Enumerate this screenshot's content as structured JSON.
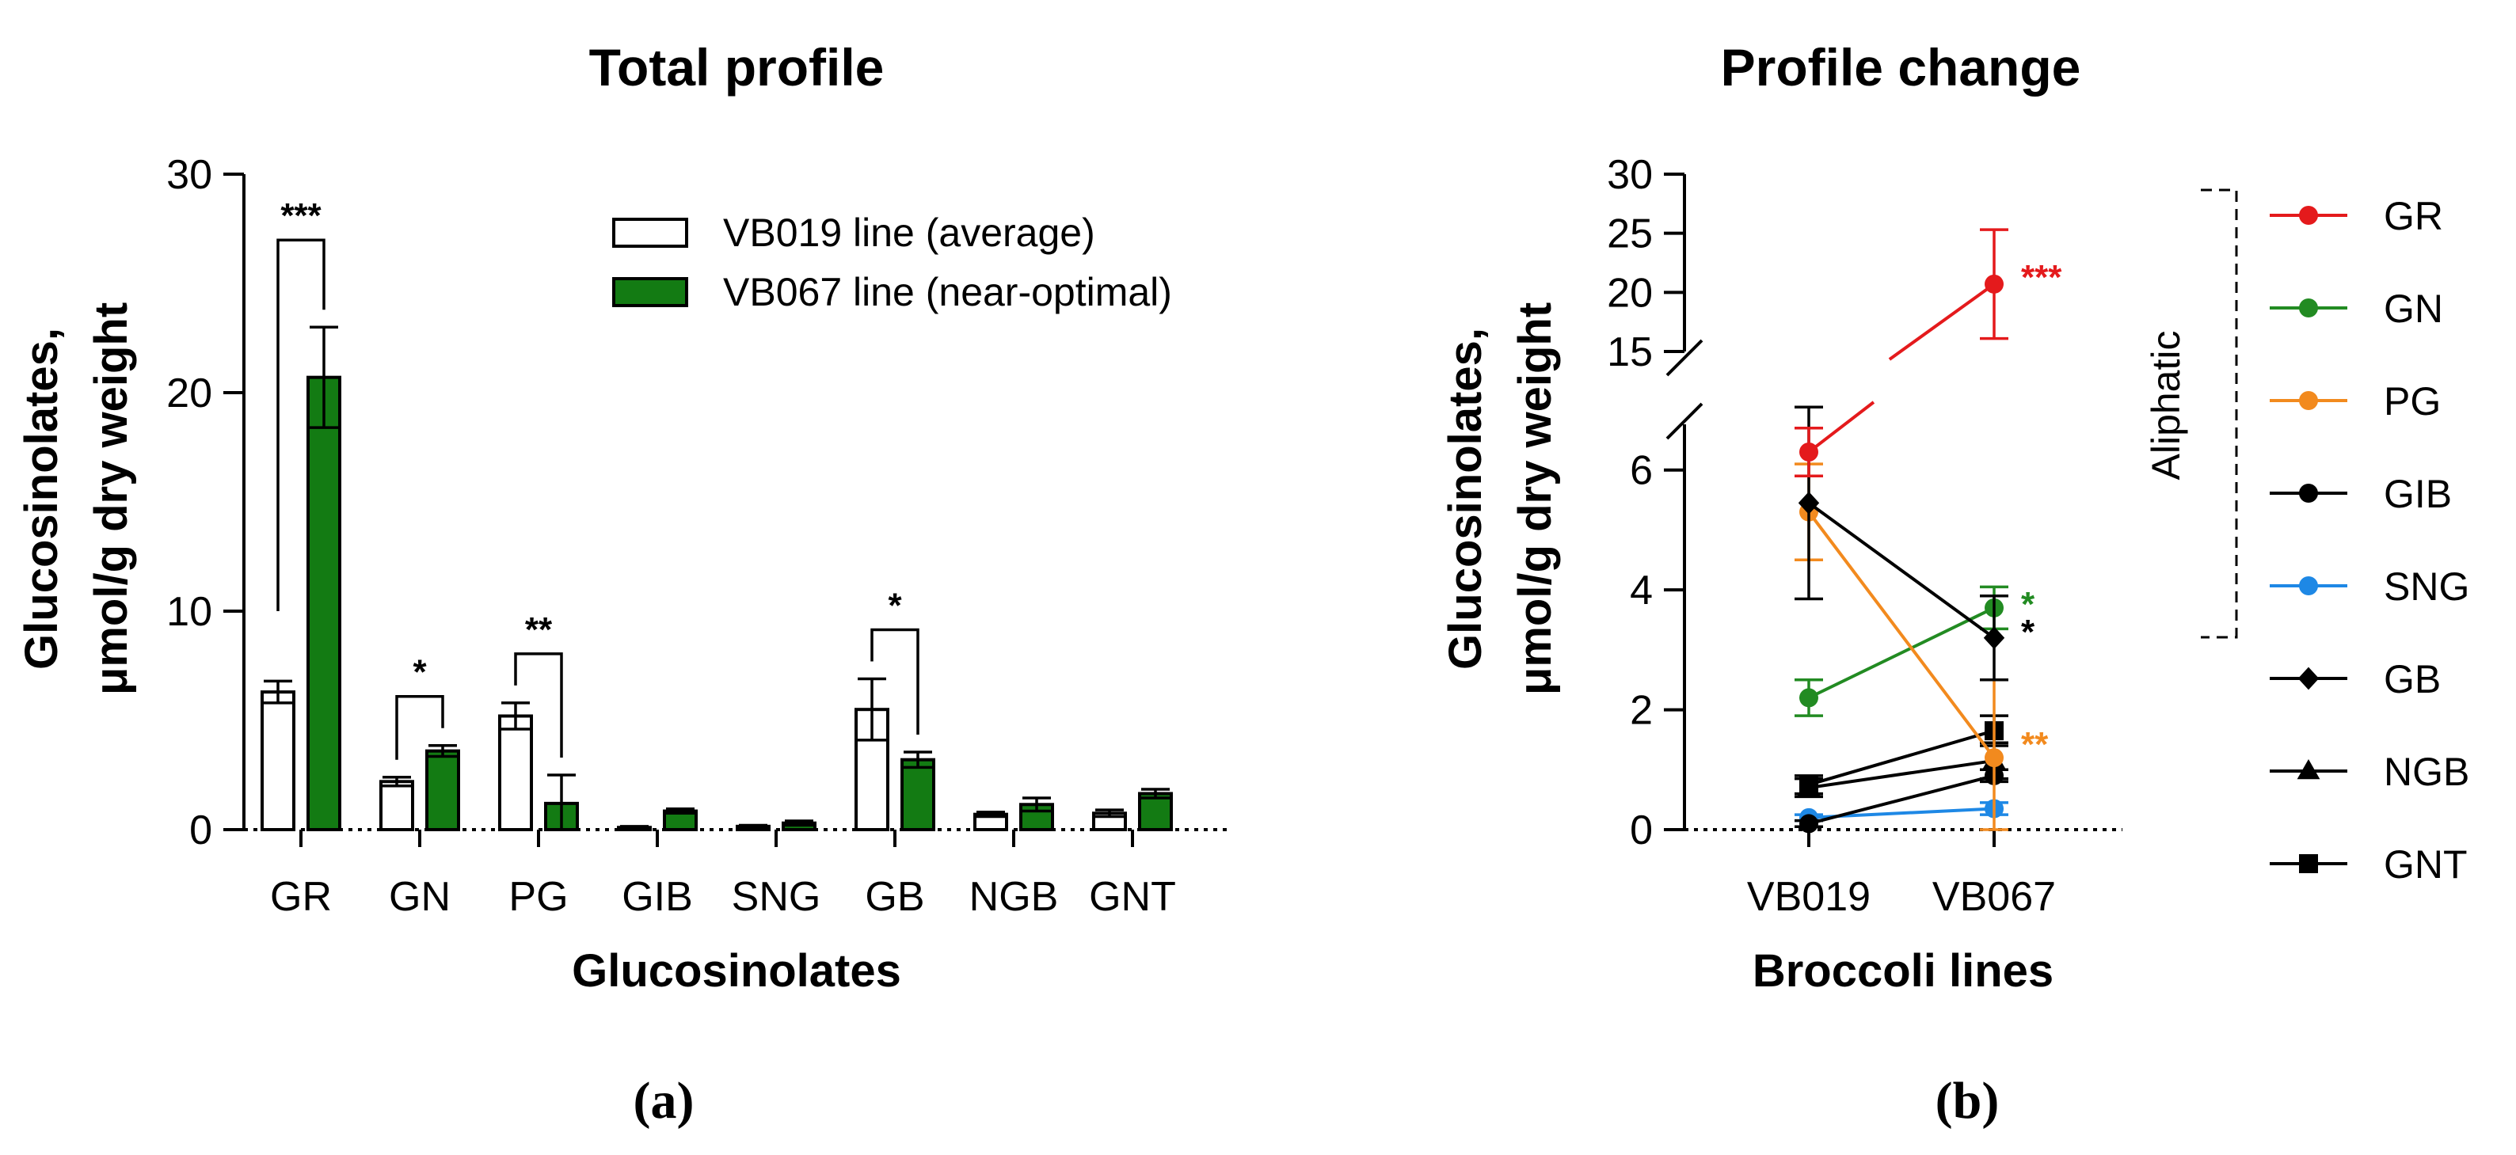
{
  "chart_data": [
    {
      "type": "bar",
      "panel_label": "(a)",
      "title": "Total profile",
      "xlabel": "Glucosinolates",
      "ylabel_line1": "Glucosinolates,",
      "ylabel_line2": "μmol/g dry weight",
      "ylim": [
        0,
        30
      ],
      "yticks": [
        0,
        10,
        20,
        30
      ],
      "categories": [
        "GR",
        "GN",
        "PG",
        "GIB",
        "SNG",
        "GB",
        "NGB",
        "GNT"
      ],
      "series": [
        {
          "name": "VB019 line (average)",
          "color": "#ffffff",
          "values": [
            6.3,
            2.2,
            5.2,
            0.1,
            0.15,
            5.5,
            0.7,
            0.75
          ],
          "errors": [
            0.5,
            0.2,
            0.6,
            0.05,
            0.05,
            1.4,
            0.1,
            0.15
          ]
        },
        {
          "name": "VB067 line (near-optimal)",
          "color": "#137b13",
          "values": [
            20.7,
            3.6,
            1.2,
            0.85,
            0.3,
            3.2,
            1.15,
            1.65
          ],
          "errors": [
            2.3,
            0.25,
            1.3,
            0.1,
            0.1,
            0.35,
            0.3,
            0.2
          ]
        }
      ],
      "significance": [
        {
          "category": "GR",
          "label": "***"
        },
        {
          "category": "GN",
          "label": "*"
        },
        {
          "category": "PG",
          "label": "**"
        },
        {
          "category": "GB",
          "label": "*"
        }
      ]
    },
    {
      "type": "line",
      "panel_label": "(b)",
      "title": "Profile change",
      "xlabel": "Broccoli lines",
      "ylabel_line1": "Glucosinolates,",
      "ylabel_line2": "μmol/g dry weight",
      "x": [
        "VB019",
        "VB067"
      ],
      "y_lower_range": [
        0,
        7
      ],
      "y_lower_ticks": [
        0,
        2,
        4,
        6
      ],
      "y_upper_range": [
        15,
        30
      ],
      "y_upper_ticks": [
        15,
        20,
        25,
        30
      ],
      "group_label": "Aliphatic",
      "series": [
        {
          "name": "GR",
          "color": "#e41a1c",
          "marker": "circle",
          "values": [
            6.3,
            20.7
          ],
          "errors": [
            0.4,
            4.6
          ],
          "sig": "***"
        },
        {
          "name": "GN",
          "color": "#228b22",
          "marker": "circle",
          "values": [
            2.2,
            3.7
          ],
          "errors": [
            0.3,
            0.35
          ],
          "sig": "*"
        },
        {
          "name": "PG",
          "color": "#f28a1e",
          "marker": "circle",
          "values": [
            5.3,
            1.2
          ],
          "errors": [
            0.8,
            1.3
          ],
          "sig": "**"
        },
        {
          "name": "GIB",
          "color": "#000000",
          "marker": "circle",
          "values": [
            0.1,
            0.9
          ],
          "errors": [
            0.05,
            0.1
          ],
          "sig": ""
        },
        {
          "name": "SNG",
          "color": "#1e88e5",
          "marker": "circle",
          "values": [
            0.2,
            0.35
          ],
          "errors": [
            0.05,
            0.1
          ],
          "sig": ""
        },
        {
          "name": "GB",
          "color": "#000000",
          "marker": "diamond",
          "values": [
            5.45,
            3.2
          ],
          "errors": [
            1.6,
            0.7
          ],
          "sig": "*"
        },
        {
          "name": "NGB",
          "color": "#000000",
          "marker": "triangle",
          "values": [
            0.7,
            1.15
          ],
          "errors": [
            0.15,
            0.3
          ],
          "sig": ""
        },
        {
          "name": "GNT",
          "color": "#000000",
          "marker": "square",
          "values": [
            0.75,
            1.65
          ],
          "errors": [
            0.15,
            0.25
          ],
          "sig": ""
        }
      ]
    }
  ]
}
